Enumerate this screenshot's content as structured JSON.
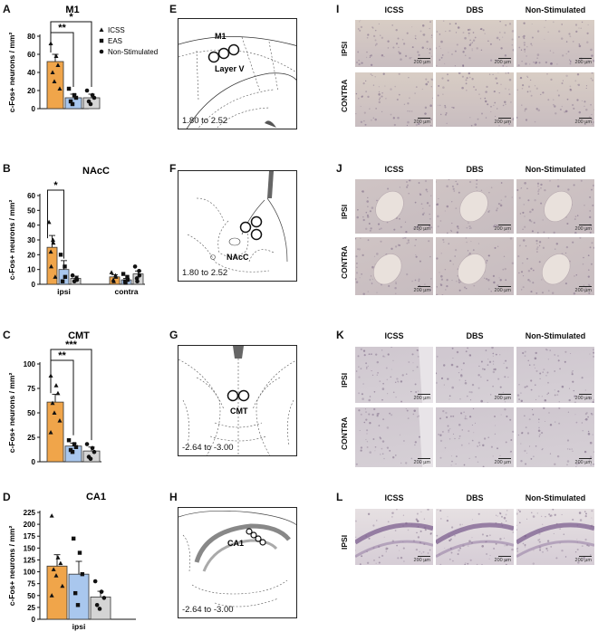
{
  "panels": {
    "A": "A",
    "B": "B",
    "C": "C",
    "D": "D",
    "E": "E",
    "F": "F",
    "G": "G",
    "H": "H",
    "I": "I",
    "J": "J",
    "K": "K",
    "L": "L"
  },
  "legend": {
    "icss": "ICSS",
    "eas": "EAS",
    "nonstim": "Non-Stimulated"
  },
  "colors": {
    "icss": "#f0a54a",
    "eas": "#a9c7ee",
    "nonstim": "#d4d4d4"
  },
  "chart_data": [
    {
      "id": "A",
      "type": "bar",
      "title": "M1",
      "ylabel": "c-Fos+ neurons / mm²",
      "ylim": [
        0,
        80
      ],
      "yticks": [
        "0",
        "20",
        "40",
        "60",
        "80"
      ],
      "categories": [
        ""
      ],
      "series": [
        {
          "name": "ICSS",
          "values": [
            52
          ],
          "err": [
            8
          ],
          "points": [
            [
              72,
              58,
              48,
              40,
              30,
              22
            ]
          ]
        },
        {
          "name": "EAS",
          "values": [
            12
          ],
          "err": [
            4
          ],
          "points": [
            [
              22,
              15,
              12,
              8,
              5
            ]
          ]
        },
        {
          "name": "Non-Stimulated",
          "values": [
            12
          ],
          "err": [
            4
          ],
          "points": [
            [
              20,
              15,
              12,
              8,
              5
            ]
          ]
        }
      ],
      "significance": [
        {
          "label": "**",
          "from": 0,
          "to": 1
        },
        {
          "label": "*",
          "from": 0,
          "to": 2
        }
      ]
    },
    {
      "id": "B",
      "type": "bar",
      "title": "NAcC",
      "ylabel": "c-Fos+ neurons / mm²",
      "ylim": [
        0,
        60
      ],
      "yticks": [
        "0",
        "10",
        "20",
        "30",
        "40",
        "50",
        "60"
      ],
      "categories": [
        "ipsi",
        "contra"
      ],
      "series": [
        {
          "name": "ICSS",
          "values": [
            25,
            5
          ],
          "err": [
            8,
            1.5
          ],
          "points": [
            [
              42,
              30,
              28,
              22,
              12,
              5
            ],
            [
              8,
              6,
              5,
              3,
              2
            ]
          ]
        },
        {
          "name": "EAS",
          "values": [
            10,
            3
          ],
          "err": [
            6,
            1
          ],
          "points": [
            [
              20,
              12,
              5,
              2
            ],
            [
              7,
              5,
              3,
              2,
              1
            ]
          ]
        },
        {
          "name": "Non-Stimulated",
          "values": [
            4,
            7
          ],
          "err": [
            1.5,
            2
          ],
          "points": [
            [
              6,
              4,
              3,
              2
            ],
            [
              12,
              9,
              6,
              4,
              2
            ]
          ]
        }
      ],
      "significance": [
        {
          "label": "*",
          "from": 0,
          "to": 1
        }
      ]
    },
    {
      "id": "C",
      "type": "bar",
      "title": "CMT",
      "ylabel": "c-Fos+ neurons / mm²",
      "ylim": [
        0,
        100
      ],
      "yticks": [
        "0",
        "25",
        "50",
        "75",
        "100"
      ],
      "categories": [
        ""
      ],
      "series": [
        {
          "name": "ICSS",
          "values": [
            61
          ],
          "err": [
            8
          ],
          "points": [
            [
              88,
              78,
              70,
              60,
              50,
              42,
              30
            ]
          ]
        },
        {
          "name": "EAS",
          "values": [
            16
          ],
          "err": [
            3
          ],
          "points": [
            [
              22,
              18,
              15,
              12,
              10
            ]
          ]
        },
        {
          "name": "Non-Stimulated",
          "values": [
            11
          ],
          "err": [
            4
          ],
          "points": [
            [
              18,
              14,
              10,
              5,
              3
            ]
          ]
        }
      ],
      "significance": [
        {
          "label": "**",
          "from": 0,
          "to": 1
        },
        {
          "label": "***",
          "from": 0,
          "to": 2
        }
      ]
    },
    {
      "id": "D",
      "type": "bar",
      "title": "CA1",
      "ylabel": "c-Fos+ neurons / mm²",
      "ylim": [
        0,
        225
      ],
      "yticks": [
        "0",
        "25",
        "50",
        "75",
        "100",
        "125",
        "150",
        "175",
        "200",
        "225"
      ],
      "categories": [
        "ipsi"
      ],
      "series": [
        {
          "name": "ICSS",
          "values": [
            112
          ],
          "err": [
            24
          ],
          "points": [
            [
              218,
              130,
              118,
              105,
              92,
              70,
              50
            ]
          ]
        },
        {
          "name": "EAS",
          "values": [
            95
          ],
          "err": [
            27
          ],
          "points": [
            [
              170,
              140,
              95,
              55,
              30
            ]
          ]
        },
        {
          "name": "Non-Stimulated",
          "values": [
            47
          ],
          "err": [
            12
          ],
          "points": [
            [
              80,
              58,
              45,
              30,
              22
            ]
          ]
        }
      ],
      "significance": []
    }
  ],
  "atlas": {
    "E": {
      "coord": "1.80 to 2.52",
      "labels": [
        "M1",
        "Layer V"
      ]
    },
    "F": {
      "coord": "1.80 to 2.52",
      "labels": [
        "NAcC"
      ]
    },
    "G": {
      "coord": "-2.64 to -3.00",
      "labels": [
        "CMT"
      ]
    },
    "H": {
      "coord": "-2.64 to -3.00",
      "labels": [
        "CA1"
      ]
    }
  },
  "micrographs": {
    "columns": [
      "ICSS",
      "DBS",
      "Non-Stimulated"
    ],
    "ipsi": "IPSI",
    "contra": "CONTRA",
    "scale": "200 µm"
  }
}
